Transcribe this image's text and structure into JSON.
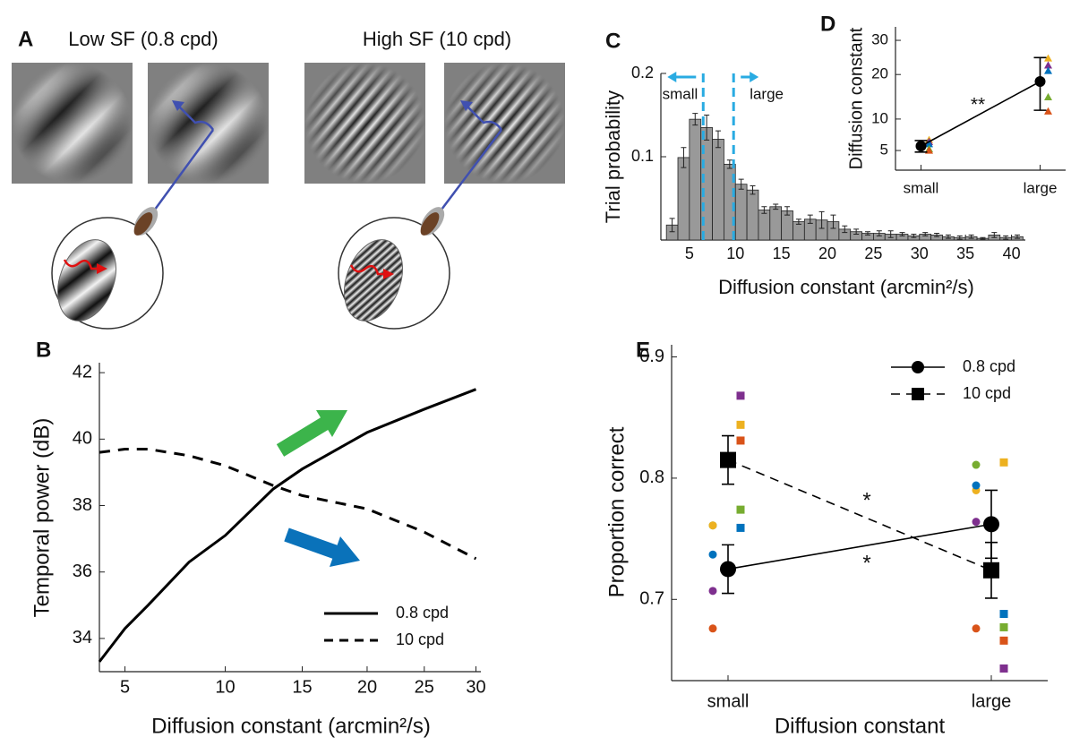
{
  "panel_a": {
    "label": "A",
    "titles": [
      "Low SF (0.8 cpd)",
      "High SF (10 cpd)"
    ]
  },
  "chart_data": [
    {
      "label": "B",
      "type": "line",
      "xlabel": "Diffusion constant (arcmin²/s)",
      "ylabel": "Temporal power (dB)",
      "x": [
        4,
        5,
        6,
        8,
        10,
        13,
        15,
        20,
        25,
        30
      ],
      "xscale": "sqrt",
      "xlim": [
        4,
        30.5
      ],
      "xticks": [
        5,
        10,
        15,
        20,
        25,
        30
      ],
      "ylim": [
        33,
        42.3
      ],
      "yticks": [
        34,
        36,
        38,
        40,
        42
      ],
      "legend": "lower right",
      "series": [
        {
          "name": "0.8 cpd",
          "color": "#000000",
          "dash": false,
          "values": [
            33.3,
            34.3,
            35.0,
            36.3,
            37.1,
            38.5,
            39.1,
            40.2,
            40.9,
            41.5
          ]
        },
        {
          "name": "10 cpd",
          "color": "#000000",
          "dash": true,
          "values": [
            39.6,
            39.7,
            39.7,
            39.5,
            39.2,
            38.6,
            38.3,
            37.9,
            37.2,
            36.4
          ]
        }
      ]
    },
    {
      "label": "C",
      "type": "histogram",
      "xlabel": "Diffusion constant (arcmin²/s)",
      "ylabel": "Trial probability",
      "bins": [
        2.5,
        3.75,
        5,
        6.25,
        7.5,
        8.75,
        10,
        11.25,
        12.5,
        13.75,
        15,
        16.25,
        17.5,
        18.75,
        20,
        21.25,
        22.5,
        23.75,
        25,
        26.25,
        27.5,
        28.75,
        30,
        31.25,
        32.5,
        33.75,
        35,
        36.25,
        37.5,
        38.75,
        40,
        41.25
      ],
      "values": [
        0.018,
        0.099,
        0.145,
        0.135,
        0.121,
        0.091,
        0.067,
        0.06,
        0.036,
        0.04,
        0.035,
        0.022,
        0.025,
        0.024,
        0.022,
        0.013,
        0.01,
        0.008,
        0.008,
        0.007,
        0.007,
        0.005,
        0.007,
        0.006,
        0.004,
        0.003,
        0.004,
        0.002,
        0.006,
        0.003,
        0.004
      ],
      "errors": [
        0.008,
        0.012,
        0.007,
        0.015,
        0.01,
        0.005,
        0.006,
        0.005,
        0.004,
        0.003,
        0.005,
        0.003,
        0.005,
        0.01,
        0.008,
        0.004,
        0.003,
        0.002,
        0.003,
        0.004,
        0.002,
        0.002,
        0.002,
        0.002,
        0.002,
        0.002,
        0.002,
        0.001,
        0.003,
        0.002,
        0.002
      ],
      "color": "#999999",
      "xlim": [
        1.9,
        41.5
      ],
      "xticks": [
        5,
        10,
        15,
        20,
        25,
        30,
        35,
        40
      ],
      "ylim": [
        0,
        0.2
      ],
      "yticks": [
        0.1,
        0.2
      ],
      "thresholds": {
        "values": [
          6.5,
          9.8
        ],
        "labels": [
          "small",
          "large"
        ],
        "color": "#29abe2"
      }
    },
    {
      "label": "D",
      "type": "dot",
      "ylabel": "Diffusion constant",
      "categories": [
        "small",
        "large"
      ],
      "yscale": "sqrt",
      "ylim": [
        2.75,
        34.5
      ],
      "yticks": [
        5,
        10,
        20,
        30
      ],
      "series": [
        {
          "color": "#000000",
          "marker": "circle",
          "dash": false,
          "values": [
            5.6,
            18.2
          ],
          "errors": [
            0.8,
            6.5
          ]
        }
      ],
      "subjects": [
        {
          "color": "#edb120",
          "marker": "triangle",
          "values": [
            6.5,
            24.5
          ]
        },
        {
          "color": "#7e2f8e",
          "marker": "triangle",
          "values": [
            6.2,
            22.5
          ]
        },
        {
          "color": "#0072bd",
          "marker": "triangle",
          "values": [
            5.9,
            21
          ]
        },
        {
          "color": "#77ac30",
          "marker": "triangle",
          "values": [
            5.2,
            14.5
          ]
        },
        {
          "color": "#d95319",
          "marker": "triangle",
          "values": [
            5.0,
            11.5
          ]
        }
      ],
      "annotations": [
        "**"
      ]
    },
    {
      "label": "E",
      "type": "dot",
      "xlabel": "Diffusion constant",
      "ylabel": "Proportion correct",
      "categories": [
        "small",
        "large"
      ],
      "ylim": [
        0.633,
        0.91
      ],
      "yticks": [
        0.7,
        0.8,
        0.9
      ],
      "legend": "upper right",
      "series": [
        {
          "name": "0.8 cpd",
          "color": "#000000",
          "marker": "circle",
          "dash": false,
          "values": [
            0.725,
            0.762
          ],
          "errors": [
            0.02,
            0.028
          ]
        },
        {
          "name": "10 cpd",
          "color": "#000000",
          "marker": "square",
          "dash": true,
          "values": [
            0.815,
            0.724
          ],
          "errors": [
            0.02,
            0.023
          ]
        }
      ],
      "subjects": [
        {
          "color": "#77ac30",
          "marker": "circle",
          "values": [
            0.761,
            0.811
          ]
        },
        {
          "color": "#edb120",
          "marker": "circle",
          "values": [
            0.761,
            0.79
          ]
        },
        {
          "color": "#0072bd",
          "marker": "circle",
          "values": [
            0.737,
            0.794
          ]
        },
        {
          "color": "#7e2f8e",
          "marker": "circle",
          "values": [
            0.707,
            0.764
          ]
        },
        {
          "color": "#d95319",
          "marker": "circle",
          "values": [
            0.676,
            0.676
          ]
        },
        {
          "color": "#7e2f8e",
          "marker": "square",
          "values": [
            0.868,
            0.643
          ]
        },
        {
          "color": "#edb120",
          "marker": "square",
          "values": [
            0.844,
            0.813
          ]
        },
        {
          "color": "#d95319",
          "marker": "square",
          "values": [
            0.831,
            0.666
          ]
        },
        {
          "color": "#77ac30",
          "marker": "square",
          "values": [
            0.774,
            0.677
          ]
        },
        {
          "color": "#0072bd",
          "marker": "square",
          "values": [
            0.759,
            0.688
          ]
        }
      ],
      "annotations": [
        "*",
        "*"
      ]
    }
  ]
}
